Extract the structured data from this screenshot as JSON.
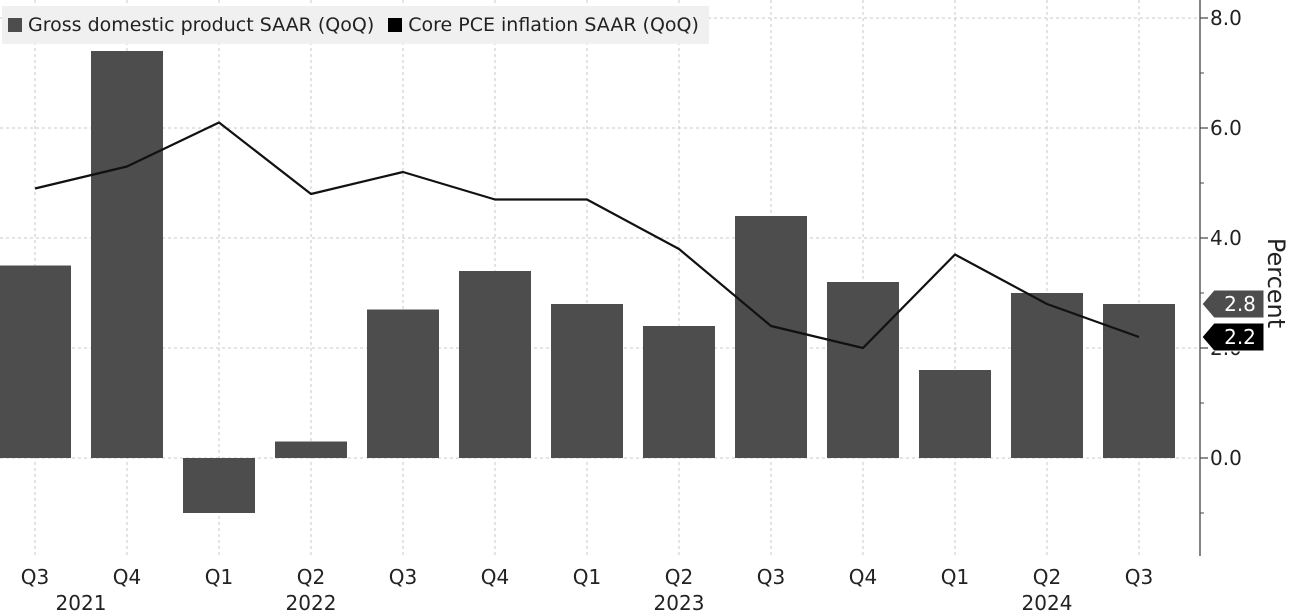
{
  "chart_data": {
    "type": "bar",
    "categories": [
      "Q3",
      "Q4",
      "Q1",
      "Q2",
      "Q3",
      "Q4",
      "Q1",
      "Q2",
      "Q3",
      "Q4",
      "Q1",
      "Q2",
      "Q3"
    ],
    "years": [
      {
        "label": "2021",
        "index": 0.5
      },
      {
        "label": "2022",
        "index": 3
      },
      {
        "label": "2023",
        "index": 7
      },
      {
        "label": "2024",
        "index": 11
      }
    ],
    "series": [
      {
        "name": "Gross domestic product SAAR (QoQ)",
        "type": "bar",
        "color": "#4d4d4d",
        "values": [
          3.5,
          7.4,
          -1.0,
          0.3,
          2.7,
          3.4,
          2.8,
          2.4,
          4.4,
          3.2,
          1.6,
          3.0,
          2.8
        ]
      },
      {
        "name": "Core PCE inflation SAAR (QoQ)",
        "type": "line",
        "color": "#111111",
        "values": [
          4.9,
          5.3,
          6.1,
          4.8,
          5.2,
          4.7,
          4.7,
          3.8,
          2.4,
          2.0,
          3.7,
          2.8,
          2.2
        ]
      }
    ],
    "ylabel": "Percent",
    "ylim": [
      -1.8,
      8.2
    ],
    "yticks": [
      "8.0",
      "6.0",
      "4.0",
      "2.0",
      "0.0"
    ],
    "ytick_values": [
      8,
      6,
      4,
      2,
      0
    ],
    "last_value_labels": [
      {
        "series": 0,
        "text": "2.8",
        "value": 2.8,
        "bg": "#4d4d4d"
      },
      {
        "series": 1,
        "text": "2.2",
        "value": 2.2,
        "bg": "#000000"
      }
    ],
    "grid": true,
    "legend_position": "top-left"
  }
}
